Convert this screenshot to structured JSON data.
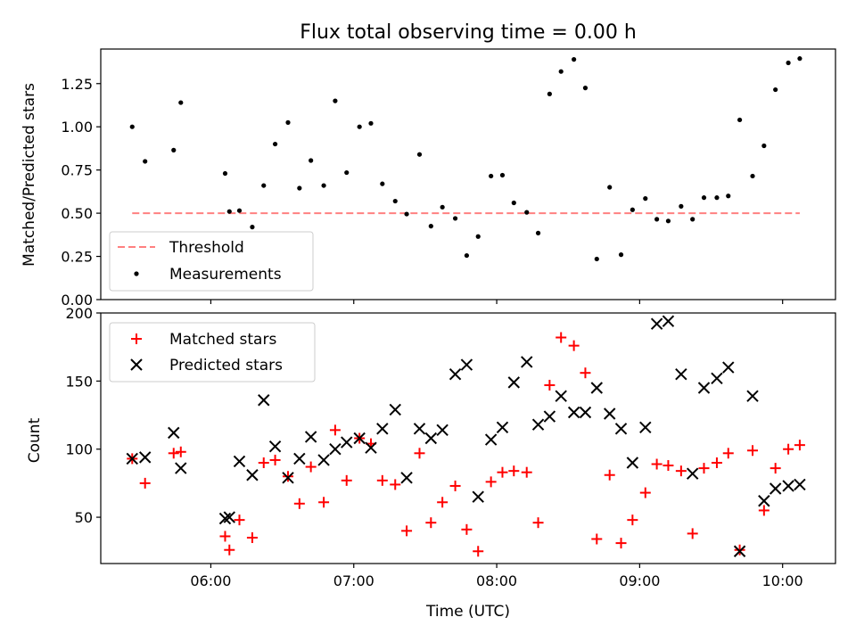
{
  "chart_data": [
    {
      "type": "scatter",
      "title": "Flux total observing time = 0.00 h",
      "ylabel": "Matched/Predicted stars",
      "xlabel": "",
      "xlim": [
        5.23,
        10.37
      ],
      "ylim": [
        0,
        1.45
      ],
      "x_ticks": [
        6,
        7,
        8,
        9,
        10
      ],
      "y_ticks": [
        0.0,
        0.25,
        0.5,
        0.75,
        1.0,
        1.25
      ],
      "y_tick_labels": [
        "0.00",
        "0.25",
        "0.50",
        "0.75",
        "1.00",
        "1.25"
      ],
      "legend_position": "lower-left",
      "series": [
        {
          "name": "Threshold",
          "style": "dashed-line",
          "color": "#ff8080",
          "x": [
            5.45,
            10.12
          ],
          "y": [
            0.5,
            0.5
          ]
        },
        {
          "name": "Measurements",
          "style": "dot",
          "color": "#000000",
          "x": [
            5.45,
            5.54,
            5.74,
            5.79,
            6.1,
            6.13,
            6.2,
            6.29,
            6.37,
            6.45,
            6.54,
            6.62,
            6.7,
            6.79,
            6.87,
            6.95,
            7.04,
            7.12,
            7.2,
            7.29,
            7.37,
            7.46,
            7.54,
            7.62,
            7.71,
            7.79,
            7.87,
            7.96,
            8.04,
            8.12,
            8.21,
            8.29,
            8.37,
            8.45,
            8.54,
            8.62,
            8.7,
            8.79,
            8.87,
            8.95,
            9.04,
            9.12,
            9.2,
            9.29,
            9.37,
            9.45,
            9.54,
            9.62,
            9.7,
            9.79,
            9.87,
            9.95,
            10.04,
            10.12
          ],
          "y": [
            1.0,
            0.8,
            0.865,
            1.14,
            0.73,
            0.51,
            0.515,
            0.42,
            0.66,
            0.9,
            1.025,
            0.645,
            0.805,
            0.66,
            1.15,
            0.735,
            1.0,
            1.02,
            0.67,
            0.57,
            0.495,
            0.84,
            0.425,
            0.535,
            0.47,
            0.255,
            0.365,
            0.715,
            0.72,
            0.56,
            0.505,
            0.385,
            1.19,
            1.32,
            1.39,
            1.225,
            0.235,
            0.65,
            0.26,
            0.52,
            0.585,
            0.465,
            0.455,
            0.54,
            0.465,
            0.59,
            0.59,
            0.6,
            1.04,
            0.715,
            0.89,
            1.215,
            1.37,
            1.395
          ]
        }
      ]
    },
    {
      "type": "scatter",
      "title": "",
      "ylabel": "Count",
      "xlabel": "Time (UTC)",
      "xlim": [
        5.23,
        10.37
      ],
      "ylim": [
        16,
        200
      ],
      "x_ticks": [
        6,
        7,
        8,
        9,
        10
      ],
      "x_tick_labels": [
        "06:00",
        "07:00",
        "08:00",
        "09:00",
        "10:00"
      ],
      "y_ticks": [
        50,
        100,
        150,
        200
      ],
      "legend_position": "upper-left",
      "series": [
        {
          "name": "Matched stars",
          "style": "plus",
          "color": "#ff0000",
          "x": [
            5.45,
            5.54,
            5.74,
            5.79,
            6.1,
            6.13,
            6.2,
            6.29,
            6.37,
            6.45,
            6.54,
            6.62,
            6.7,
            6.79,
            6.87,
            6.95,
            7.04,
            7.12,
            7.2,
            7.29,
            7.37,
            7.46,
            7.54,
            7.62,
            7.71,
            7.79,
            7.87,
            7.96,
            8.04,
            8.12,
            8.21,
            8.29,
            8.37,
            8.45,
            8.54,
            8.62,
            8.7,
            8.79,
            8.87,
            8.95,
            9.04,
            9.12,
            9.2,
            9.29,
            9.37,
            9.45,
            9.54,
            9.62,
            9.7,
            9.79,
            9.87,
            9.95,
            10.04,
            10.12
          ],
          "y": [
            93,
            75,
            97,
            98,
            36,
            26,
            48,
            35,
            90,
            92,
            80,
            60,
            87,
            61,
            114,
            77,
            108,
            104,
            77,
            74,
            40,
            97,
            46,
            61,
            73,
            41,
            25,
            76,
            83,
            84,
            83,
            46,
            147,
            182,
            176,
            156,
            34,
            81,
            31,
            48,
            68,
            89,
            88,
            84,
            38,
            86,
            90,
            97,
            26,
            99,
            55,
            86,
            100,
            103
          ]
        },
        {
          "name": "Predicted stars",
          "style": "x",
          "color": "#000000",
          "x": [
            5.45,
            5.54,
            5.74,
            5.79,
            6.1,
            6.13,
            6.2,
            6.29,
            6.37,
            6.45,
            6.54,
            6.62,
            6.7,
            6.79,
            6.87,
            6.95,
            7.04,
            7.12,
            7.2,
            7.29,
            7.37,
            7.46,
            7.54,
            7.62,
            7.71,
            7.79,
            7.87,
            7.96,
            8.04,
            8.12,
            8.21,
            8.29,
            8.37,
            8.45,
            8.54,
            8.62,
            8.7,
            8.79,
            8.87,
            8.95,
            9.04,
            9.12,
            9.2,
            9.29,
            9.37,
            9.45,
            9.54,
            9.62,
            9.7,
            9.79,
            9.87,
            9.95,
            10.04,
            10.12
          ],
          "y": [
            93,
            94,
            112,
            86,
            49,
            50,
            91,
            81,
            136,
            102,
            79,
            93,
            109,
            92,
            100,
            105,
            108,
            101,
            115,
            129,
            79,
            115,
            108,
            114,
            155,
            162,
            65,
            107,
            116,
            149,
            164,
            118,
            124,
            139,
            127,
            127,
            145,
            126,
            115,
            90,
            116,
            192,
            194,
            155,
            82,
            145,
            152,
            160,
            25,
            139,
            62,
            71,
            73,
            74
          ]
        }
      ]
    }
  ]
}
